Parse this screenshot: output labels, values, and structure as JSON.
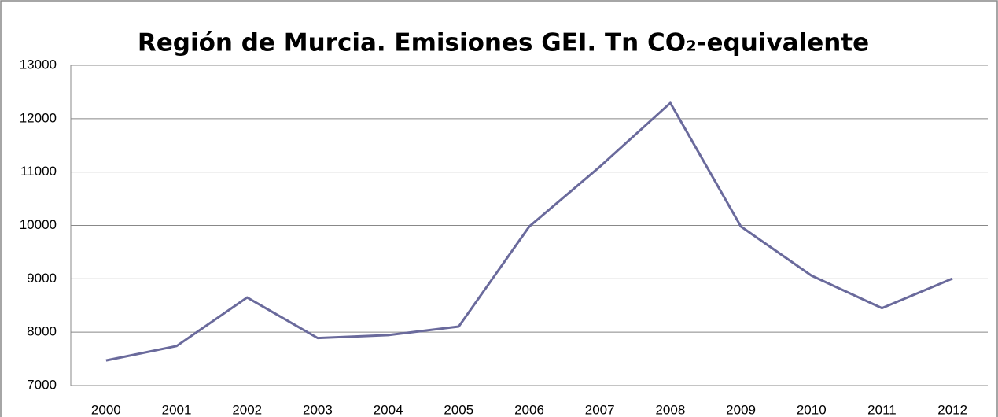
{
  "chart_data": {
    "type": "line",
    "title": "Región de Murcia. Emisiones GEI. Tn CO₂-equivalente",
    "categories": [
      "2000",
      "2001",
      "2002",
      "2003",
      "2004",
      "2005",
      "2006",
      "2007",
      "2008",
      "2009",
      "2010",
      "2011",
      "2012"
    ],
    "series": [
      {
        "color": "#6a6a9c",
        "values": [
          7470,
          7740,
          8650,
          7890,
          7945,
          8105,
          9980,
          11100,
          12295,
          9980,
          9060,
          8450,
          9005
        ]
      }
    ],
    "ylim": [
      7000,
      13000
    ],
    "yticks": [
      7000,
      8000,
      9000,
      10000,
      11000,
      12000,
      13000
    ],
    "grid": true
  }
}
